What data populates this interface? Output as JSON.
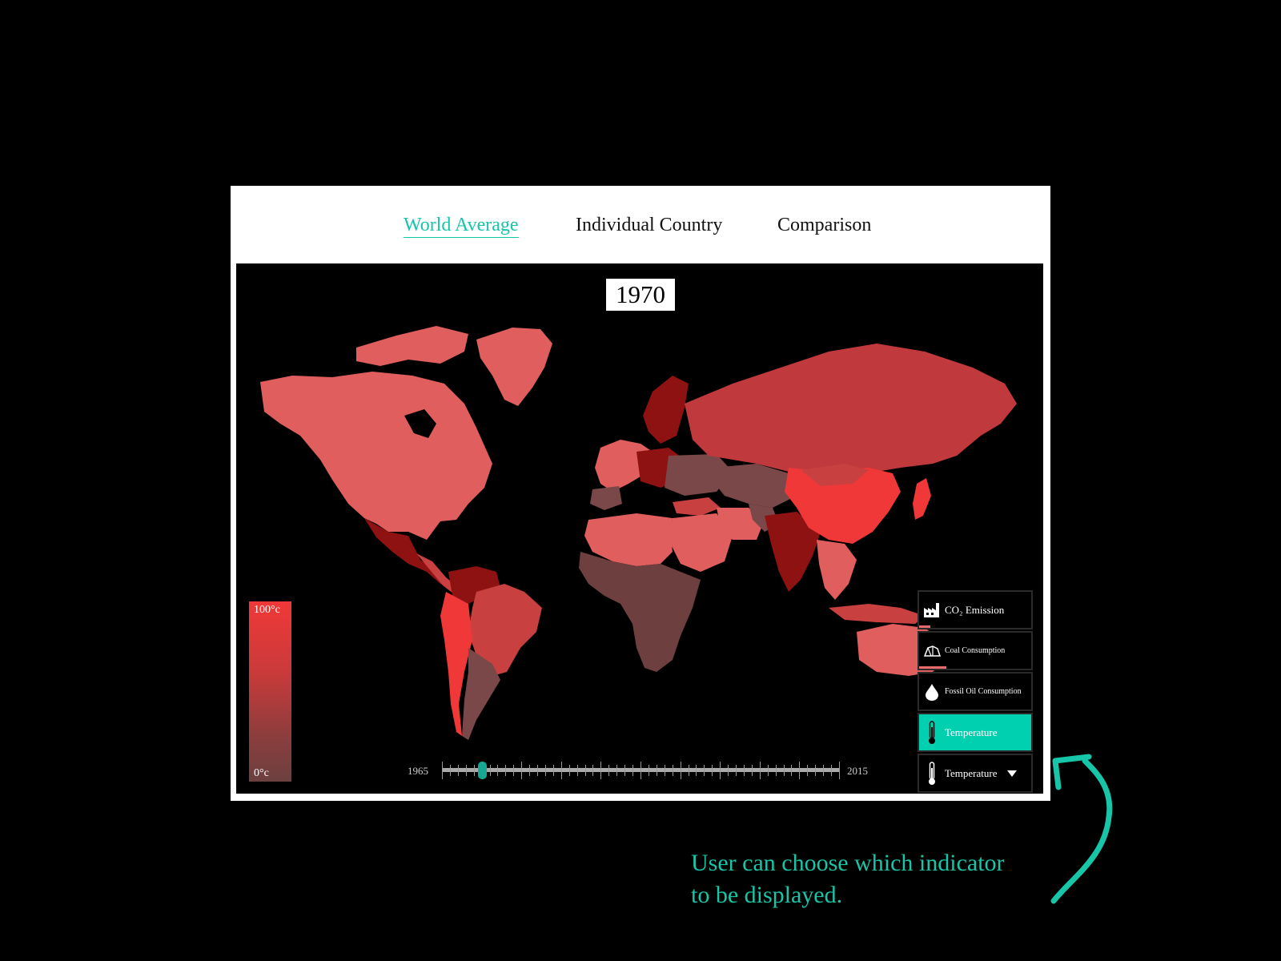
{
  "nav": {
    "tabs": [
      {
        "label": "World Average",
        "active": true
      },
      {
        "label": "Individual Country",
        "active": false
      },
      {
        "label": "Comparison",
        "active": false
      }
    ]
  },
  "map": {
    "year": "1970",
    "legend": {
      "max_label": "100°c",
      "min_label": "0°c"
    },
    "slider": {
      "start": "1965",
      "end": "2015",
      "value": 1970
    },
    "colors": {
      "hot": "#f03838",
      "mid": "#c94040",
      "cool": "#6e3f3f",
      "light": "#e05e5e",
      "dark": "#8f1212",
      "brown": "#7a4848"
    }
  },
  "indicators": {
    "items": [
      {
        "label": "CO₂ Emission",
        "icon": "factory-icon",
        "selected": false
      },
      {
        "label": "Coal Consumption",
        "icon": "coal-icon",
        "selected": false
      },
      {
        "label": "Fossil Oil Consumption",
        "icon": "oil-drop-icon",
        "selected": false
      },
      {
        "label": "Temperature",
        "icon": "thermometer-icon",
        "selected": true
      }
    ],
    "dropdown": {
      "label": "Temperature",
      "icon": "thermometer-icon"
    }
  },
  "annotation": {
    "line1": "User can choose which indicator",
    "line2": "to be displayed.",
    "color": "#17c5a8"
  }
}
